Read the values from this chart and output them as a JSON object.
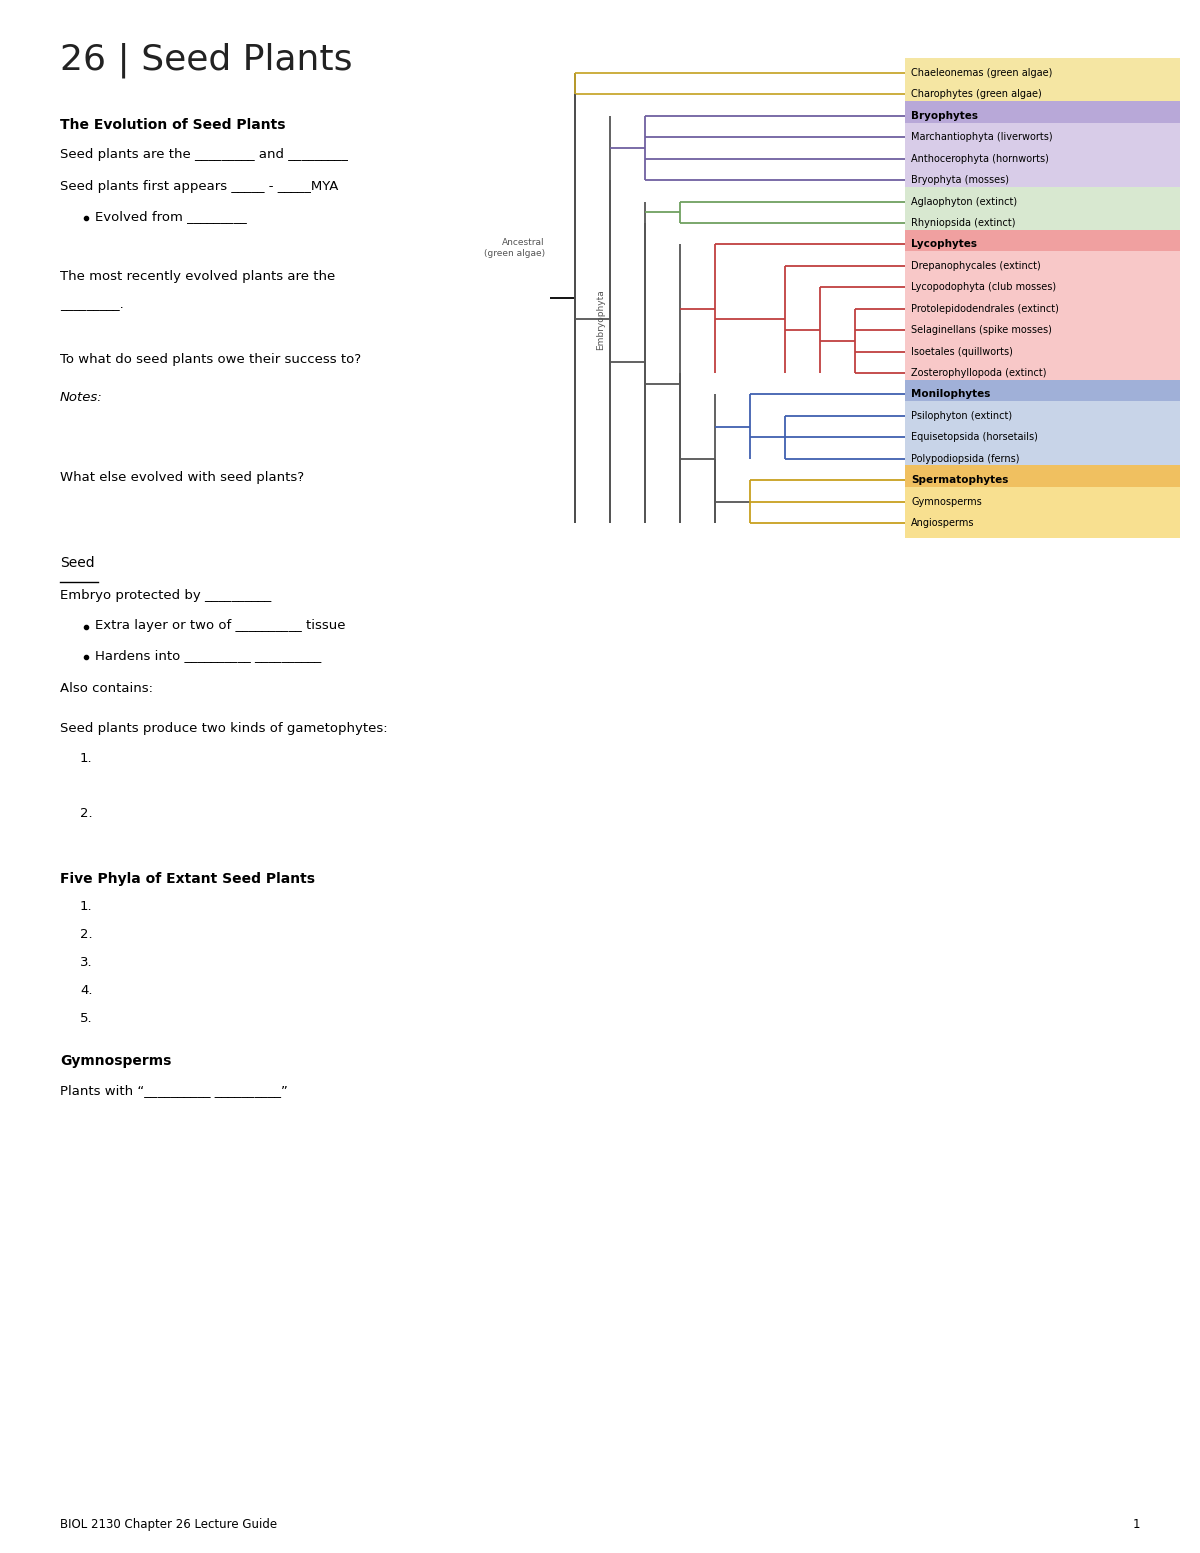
{
  "page_title": "26 | Seed Plants",
  "bg_color": "#ffffff",
  "section1_title": "The Evolution of Seed Plants",
  "line1": "Seed plants are the _________ and _________",
  "line2": "Seed plants first appears _____ - _____MYA",
  "bullet1": "Evolved from _________",
  "line3": "The most recently evolved plants are the",
  "line4": "_________.",
  "line5": "To what do seed plants owe their success to?",
  "line6": "Notes:",
  "line7": "What else evolved with seed plants?",
  "section2_title": "Seed",
  "seed_line1": "Embryo protected by __________",
  "seed_bullet1": "Extra layer or two of __________ tissue",
  "seed_bullet2": "Hardens into __________ __________",
  "seed_also": "Also contains:",
  "seed_line2": "Seed plants produce two kinds of gametophytes:",
  "seed_num1": "1.",
  "seed_num2": "2.",
  "section3_title": "Five Phyla of Extant Seed Plants",
  "five_items": [
    "1.",
    "2.",
    "3.",
    "4.",
    "5."
  ],
  "section4_title": "Gymnosperms",
  "gymno_line": "Plants with “__________ __________”",
  "footer": "BIOL 2130 Chapter 26 Lecture Guide",
  "footer_page": "1",
  "tree_groups": [
    {
      "label": "Chaeleonemas (green algae)",
      "color": "#f5e6a3",
      "border": "#c8a830",
      "bold": false
    },
    {
      "label": "Charophytes (green algae)",
      "color": "#f5e6a3",
      "border": "#c8a830",
      "bold": false
    },
    {
      "label": "Bryophytes",
      "color": "#b8a8d8",
      "border": "#7060a0",
      "bold": true
    },
    {
      "label": "Marchantiophyta (liverworts)",
      "color": "#d8cce8",
      "border": "#7060a0",
      "bold": false
    },
    {
      "label": "Anthocerophyta (hornworts)",
      "color": "#d8cce8",
      "border": "#7060a0",
      "bold": false
    },
    {
      "label": "Bryophyta (mosses)",
      "color": "#d8cce8",
      "border": "#7060a0",
      "bold": false
    },
    {
      "label": "Aglaophyton (extinct)",
      "color": "#d8e8d0",
      "border": "#70a060",
      "bold": false
    },
    {
      "label": "Rhyniopsida (extinct)",
      "color": "#d8e8d0",
      "border": "#70a060",
      "bold": false
    },
    {
      "label": "Lycophytes",
      "color": "#f0a0a0",
      "border": "#c04040",
      "bold": true
    },
    {
      "label": "Drepanophycales (extinct)",
      "color": "#f8c8c8",
      "border": "#c04040",
      "bold": false
    },
    {
      "label": "Lycopodophyta (club mosses)",
      "color": "#f8c8c8",
      "border": "#c04040",
      "bold": false
    },
    {
      "label": "Protolepidodendrales (extinct)",
      "color": "#f8c8c8",
      "border": "#c04040",
      "bold": false
    },
    {
      "label": "Selaginellans (spike mosses)",
      "color": "#f8c8c8",
      "border": "#c04040",
      "bold": false
    },
    {
      "label": "Isoetales (quillworts)",
      "color": "#f8c8c8",
      "border": "#c04040",
      "bold": false
    },
    {
      "label": "Zosterophyllopoda (extinct)",
      "color": "#f8c8c8",
      "border": "#c04040",
      "bold": false
    },
    {
      "label": "Monilophytes",
      "color": "#a0b0d8",
      "border": "#4060b0",
      "bold": true
    },
    {
      "label": "Psilophyton (extinct)",
      "color": "#c8d4e8",
      "border": "#4060b0",
      "bold": false
    },
    {
      "label": "Equisetopsida (horsetails)",
      "color": "#c8d4e8",
      "border": "#4060b0",
      "bold": false
    },
    {
      "label": "Polypodiopsida (ferns)",
      "color": "#c8d4e8",
      "border": "#4060b0",
      "bold": false
    },
    {
      "label": "Spermatophytes",
      "color": "#f0c060",
      "border": "#b08000",
      "bold": true
    },
    {
      "label": "Gymnosperms",
      "color": "#f8e090",
      "border": "#b08000",
      "bold": false
    },
    {
      "label": "Angiosperms",
      "color": "#f8e090",
      "border": "#b08000",
      "bold": false
    }
  ],
  "branch_colors": {
    "outgroup": "#c8a830",
    "bryo": "#7060a0",
    "agla": "#70a060",
    "lyco": "#c04040",
    "mono": "#4060b0",
    "sperm": "#c8a020",
    "main": "#555555"
  }
}
